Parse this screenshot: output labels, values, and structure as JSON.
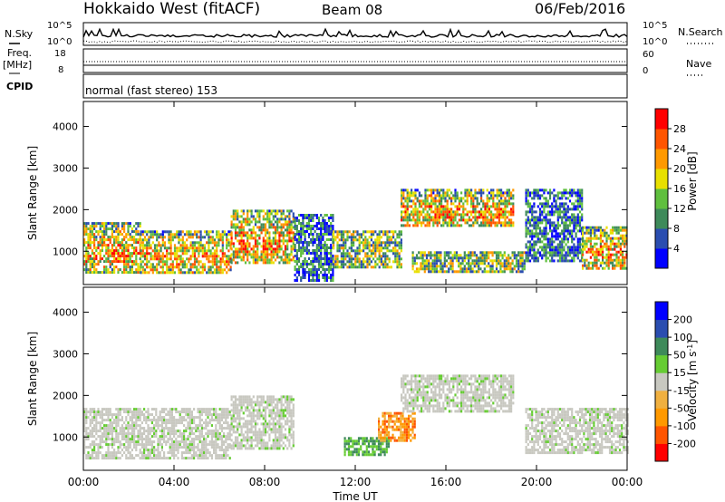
{
  "header": {
    "station": "Hokkaido West (fitACF)",
    "beam": "Beam 08",
    "date": "06/Feb/2016"
  },
  "side_labels": {
    "nsky": "N.Sky",
    "freq_line1": "Freq.",
    "freq_line2": "[MHz]",
    "cpid": "CPID",
    "nsearch": "N.Search",
    "nave": "Nave"
  },
  "top_axes": {
    "noise_left_ticks": [
      "10^5",
      "10^0"
    ],
    "noise_right_ticks": [
      "10^5",
      "10^0"
    ],
    "freq_left_ticks": [
      "18",
      "8"
    ],
    "nave_right_ticks": [
      "60",
      "0"
    ]
  },
  "cpid_text": "normal (fast stereo) 153",
  "chart_data": [
    {
      "type": "heatmap",
      "name": "power",
      "ylabel": "Slant Range [km]",
      "yticks": [
        "1000",
        "2000",
        "3000",
        "4000"
      ],
      "ylim": [
        200,
        4600
      ],
      "xlim": [
        0,
        24
      ],
      "colorbar_label": "Power [dB]",
      "colorbar_ticks": [
        "4",
        "8",
        "12",
        "16",
        "20",
        "24",
        "28"
      ],
      "colorscale": [
        "#0000ff",
        "#2a4db0",
        "#3e8a5a",
        "#5fbf3e",
        "#e8e000",
        "#ff9900",
        "#ff5500",
        "#ff0000"
      ],
      "bands": [
        {
          "t0": 0.0,
          "t1": 2.5,
          "r0": 500,
          "r1": 1700,
          "level": "high"
        },
        {
          "t0": 2.5,
          "t1": 6.5,
          "r0": 500,
          "r1": 1500,
          "level": "high"
        },
        {
          "t0": 6.5,
          "t1": 9.3,
          "r0": 700,
          "r1": 2000,
          "level": "high"
        },
        {
          "t0": 9.3,
          "t1": 11.0,
          "r0": 300,
          "r1": 1900,
          "level": "low"
        },
        {
          "t0": 11.0,
          "t1": 14.0,
          "r0": 600,
          "r1": 1500,
          "level": "mid"
        },
        {
          "t0": 14.0,
          "t1": 19.0,
          "r0": 1600,
          "r1": 2500,
          "level": "high"
        },
        {
          "t0": 14.5,
          "t1": 19.5,
          "r0": 500,
          "r1": 1000,
          "level": "mid"
        },
        {
          "t0": 19.5,
          "t1": 22.0,
          "r0": 800,
          "r1": 2500,
          "level": "low"
        },
        {
          "t0": 22.0,
          "t1": 24.0,
          "r0": 600,
          "r1": 1600,
          "level": "high"
        }
      ]
    },
    {
      "type": "heatmap",
      "name": "velocity",
      "ylabel": "Slant Range [km]",
      "yticks": [
        "1000",
        "2000",
        "3000",
        "4000"
      ],
      "ylim": [
        200,
        4600
      ],
      "xlim": [
        0,
        24
      ],
      "xlabel": "Time UT",
      "xticks": [
        "00:00",
        "04:00",
        "08:00",
        "12:00",
        "16:00",
        "20:00",
        "00:00"
      ],
      "colorbar_label": "Velocity [m s",
      "colorbar_label_sup": "-1",
      "colorbar_label_end": "]",
      "colorbar_ticks": [
        "-200",
        "-100",
        "-50",
        "-15",
        "15",
        "50",
        "100",
        "200"
      ],
      "colorscale": [
        "#ff0000",
        "#ff5500",
        "#ff9900",
        "#f0b040",
        "#c8c8c0",
        "#66cc33",
        "#3e8a5a",
        "#2a4db0",
        "#0000ff"
      ],
      "bands": [
        {
          "t0": 0.0,
          "t1": 6.5,
          "r0": 500,
          "r1": 1700,
          "level": "ground"
        },
        {
          "t0": 6.5,
          "t1": 9.3,
          "r0": 700,
          "r1": 2000,
          "level": "ground"
        },
        {
          "t0": 11.5,
          "t1": 13.5,
          "r0": 600,
          "r1": 1000,
          "level": "towards"
        },
        {
          "t0": 13.0,
          "t1": 14.6,
          "r0": 900,
          "r1": 1600,
          "level": "away"
        },
        {
          "t0": 14.0,
          "t1": 19.0,
          "r0": 1600,
          "r1": 2500,
          "level": "ground"
        },
        {
          "t0": 19.5,
          "t1": 24.0,
          "r0": 600,
          "r1": 1700,
          "level": "ground"
        }
      ]
    }
  ]
}
